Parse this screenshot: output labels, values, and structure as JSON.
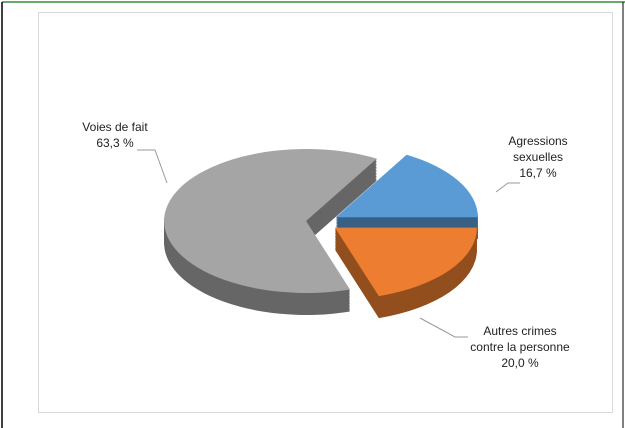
{
  "chart_data": {
    "type": "pie",
    "categories": [
      "Voies de fait",
      "Agressions sexuelles",
      "Autres crimes contre la personne"
    ],
    "values": [
      63.3,
      16.7,
      20.0
    ],
    "value_labels": [
      "63,3 %",
      "16,7 %",
      "20,0 %"
    ],
    "colors": [
      "#a5a5a5",
      "#5b9bd5",
      "#ed7d31"
    ]
  }
}
